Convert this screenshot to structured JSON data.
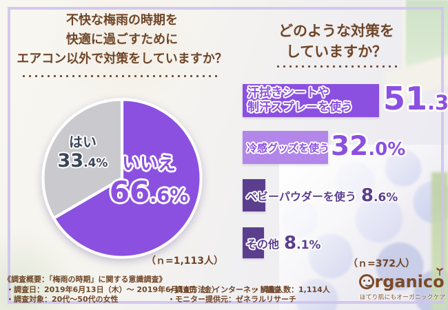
{
  "palette": {
    "purple_main": "#8b50e0",
    "purple_light": "#b287e9",
    "purple_dark": "#5b3e8e",
    "gray_slice": "#cac9ce",
    "navy_text": "#3b4557",
    "brown_text": "#6f4527",
    "brown_logo": "#7c4a28",
    "frame_lavender": "#cfc3ec"
  },
  "left": {
    "title_lines": [
      "不快な梅雨の時期を",
      "快適に過ごすために",
      "エアコン以外で対策をしていますか？"
    ],
    "n_note": "（ｎ=1,113人）"
  },
  "right": {
    "title_lines": [
      "どのような対策を",
      "していますか？"
    ],
    "bars": [
      {
        "lines": [
          "汗拭きシートや",
          "制汗スプレーを使う"
        ]
      },
      {
        "lines": [
          "冷感グッズを使う"
        ]
      },
      {
        "lines": [
          "ベビーパウダーを使う"
        ]
      },
      {
        "lines": [
          "その他"
        ]
      }
    ],
    "n_note": "（ｎ=372人）"
  },
  "footer": {
    "line1": "《調査概要：「梅雨の時期」に関する意識調査》",
    "line2a": "・調査日：2019年6月13日（木）～ 2019年6月14日（金）",
    "line2b": "・調査方法：インターネット調査",
    "line2c": "・調査人数：1,114人",
    "line3a": "・調査対象：20代～50代の女性",
    "line3b": "・モニター提供元：ゼネラルリサーチ"
  },
  "logo": {
    "brand": "Organico",
    "brand_rest": "rganico",
    "tagline": "ほてり肌にもオーガニックケア"
  },
  "chart_data": [
    {
      "type": "pie",
      "title": "不快な梅雨の時期を快適に過ごすためにエアコン以外で対策をしていますか？",
      "labels": [
        "いいえ",
        "はい"
      ],
      "values": [
        66.6,
        33.4
      ],
      "colors": [
        "#8b50e0",
        "#cac9ce"
      ],
      "start_angle_deg": -90,
      "direction": "clockwise",
      "n": "n=1,113人"
    },
    {
      "type": "bar",
      "orientation": "horizontal",
      "title": "どのような対策をしていますか？",
      "categories": [
        "汗拭きシートや制汗スプレーを使う",
        "冷感グッズを使う",
        "ベビーパウダーを使う",
        "その他"
      ],
      "values": [
        51.3,
        32.0,
        8.6,
        8.1
      ],
      "colors": [
        "#8b50e0",
        "#b287e9",
        "#5b3e8e",
        "#5b3e8e"
      ],
      "xlim": [
        0,
        100
      ],
      "n": "n=372人"
    }
  ]
}
